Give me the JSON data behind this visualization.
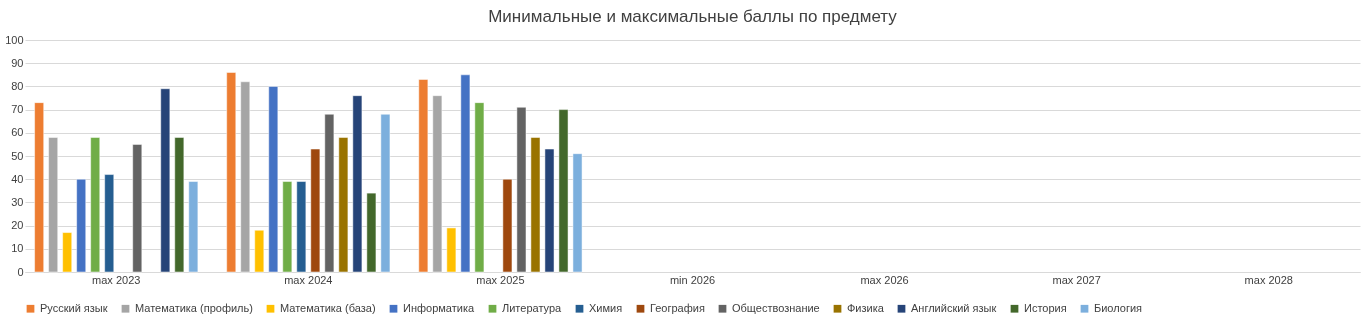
{
  "chart_data": {
    "type": "bar",
    "title": "Минимальные и максимальные баллы по предмету",
    "categories": [
      "max 2023",
      "max 2024",
      "max 2025",
      "min 2026",
      "max 2026",
      "max 2027",
      "max 2028"
    ],
    "series": [
      {
        "name": "Русский язык",
        "color": "#ed7d31",
        "values": [
          73,
          86,
          83,
          null,
          null,
          null,
          null
        ]
      },
      {
        "name": "Математика (профиль)",
        "color": "#a5a5a5",
        "values": [
          58,
          82,
          76,
          null,
          null,
          null,
          null
        ]
      },
      {
        "name": "Математика (база)",
        "color": "#ffc000",
        "values": [
          17,
          18,
          19,
          null,
          null,
          null,
          null
        ]
      },
      {
        "name": "Информатика",
        "color": "#4472c4",
        "values": [
          40,
          80,
          85,
          null,
          null,
          null,
          null
        ]
      },
      {
        "name": "Литература",
        "color": "#70ad47",
        "values": [
          58,
          39,
          73,
          null,
          null,
          null,
          null
        ]
      },
      {
        "name": "Химия",
        "color": "#255e91",
        "values": [
          42,
          39,
          null,
          null,
          null,
          null,
          null
        ]
      },
      {
        "name": "География",
        "color": "#9e480e",
        "values": [
          null,
          53,
          40,
          null,
          null,
          null,
          null
        ]
      },
      {
        "name": "Обществознание",
        "color": "#636363",
        "values": [
          55,
          68,
          71,
          null,
          null,
          null,
          null
        ]
      },
      {
        "name": "Физика",
        "color": "#997300",
        "values": [
          null,
          58,
          58,
          null,
          null,
          null,
          null
        ]
      },
      {
        "name": "Английский язык",
        "color": "#264478",
        "values": [
          79,
          76,
          53,
          null,
          null,
          null,
          null
        ]
      },
      {
        "name": "История",
        "color": "#43682b",
        "values": [
          58,
          34,
          70,
          null,
          null,
          null,
          null
        ]
      },
      {
        "name": "Биология",
        "color": "#7cafdd",
        "values": [
          39,
          68,
          51,
          null,
          null,
          null,
          null
        ]
      }
    ],
    "ylim": [
      0,
      100
    ],
    "yticks": [
      0,
      10,
      20,
      30,
      40,
      50,
      60,
      70,
      80,
      90,
      100
    ],
    "grid": "y",
    "legend": "bottom"
  }
}
